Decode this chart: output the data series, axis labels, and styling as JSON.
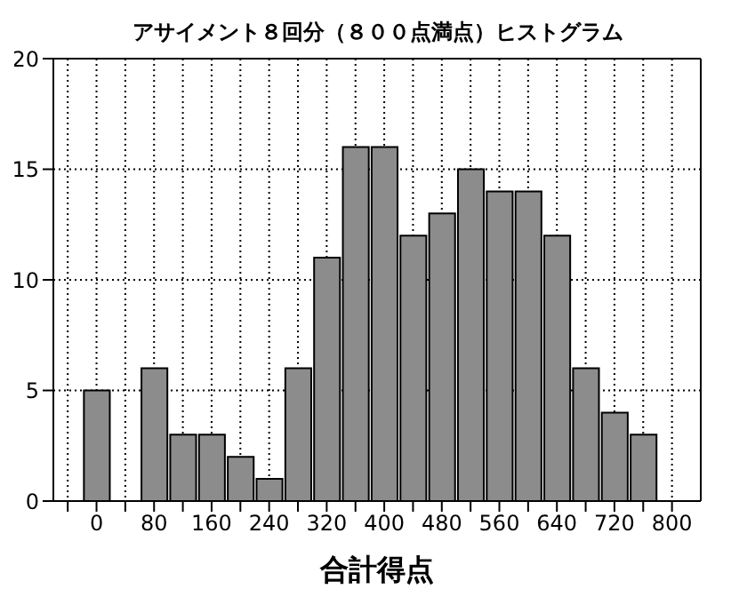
{
  "chart_data": {
    "type": "histogram",
    "title": "アサイメント８回分（８００点満点）ヒストグラム",
    "xlabel": "合計得点",
    "bins": [
      -20,
      20,
      60,
      100,
      140,
      180,
      220,
      260,
      300,
      340,
      380,
      420,
      460,
      500,
      540,
      580,
      620,
      660,
      700,
      740,
      780
    ],
    "values": [
      5,
      0,
      6,
      3,
      3,
      2,
      1,
      6,
      11,
      16,
      16,
      12,
      13,
      15,
      14,
      14,
      12,
      6,
      4,
      3
    ],
    "color": "#8c8c8c",
    "xlim": [
      -60,
      840
    ],
    "xticks": [
      {
        "value": -40,
        "label": null
      },
      0,
      {
        "value": 40,
        "label": null
      },
      80,
      {
        "value": 120,
        "label": null
      },
      160,
      {
        "value": 200,
        "label": null
      },
      240,
      {
        "value": 280,
        "label": null
      },
      320,
      {
        "value": 360,
        "label": null
      },
      400,
      {
        "value": 440,
        "label": null
      },
      480,
      {
        "value": 520,
        "label": null
      },
      560,
      {
        "value": 600,
        "label": null
      },
      640,
      {
        "value": 680,
        "label": null
      },
      720,
      {
        "value": 760,
        "label": null
      },
      800
    ],
    "ylim": [
      0,
      20
    ],
    "yticks": [
      0,
      5,
      10,
      15,
      20
    ],
    "grid": true
  }
}
